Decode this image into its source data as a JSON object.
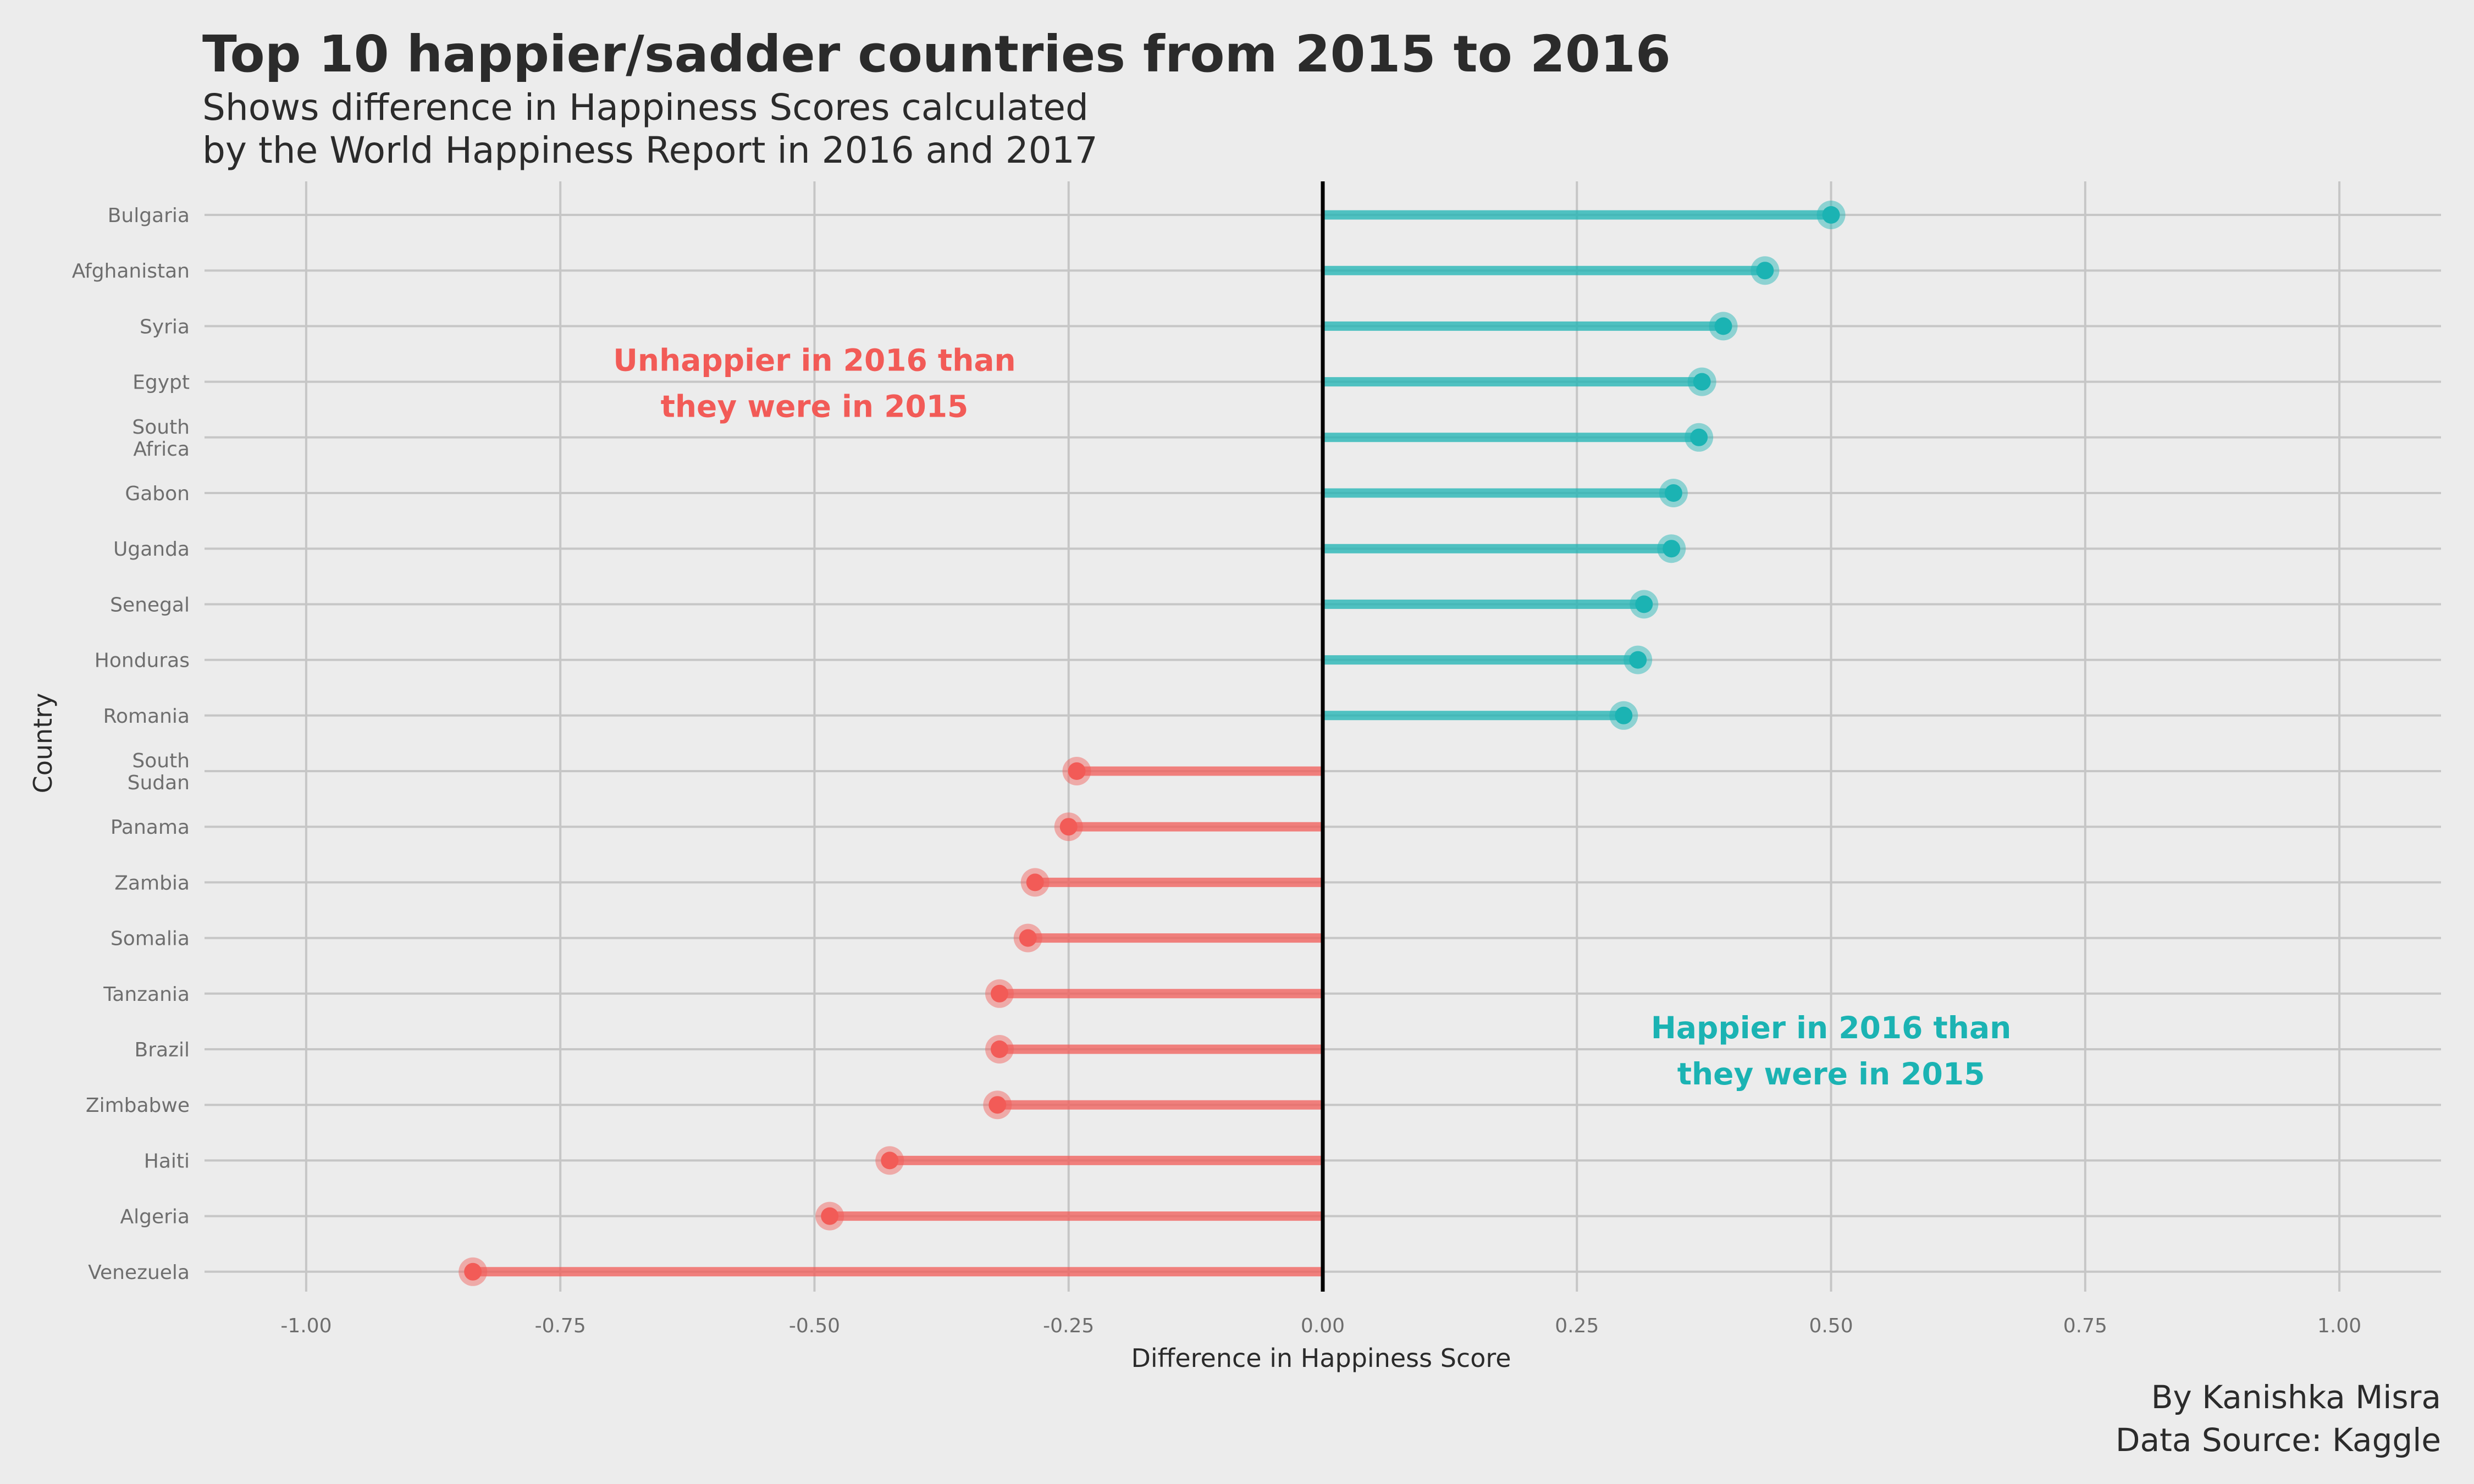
{
  "chart_data": {
    "type": "lollipop",
    "title": "Top 10 happier/sadder countries from 2015 to 2016",
    "subtitle": [
      "Shows difference in Happiness Scores calculated",
      "by the World Happiness Report in 2016 and 2017"
    ],
    "xlabel": "Difference in Happiness Score",
    "ylabel": "Country",
    "xlim": [
      -1.1,
      1.1
    ],
    "xticks": [
      -1.0,
      -0.75,
      -0.5,
      -0.25,
      0.0,
      0.25,
      0.5,
      0.75,
      1.0
    ],
    "xtick_labels": [
      "-1.00",
      "-0.75",
      "-0.50",
      "-0.25",
      "0.00",
      "0.25",
      "0.50",
      "0.75",
      "1.00"
    ],
    "grid": true,
    "colors": {
      "positive": "#1bb3b3",
      "negative": "#f25b57",
      "zero_line": "#000000"
    },
    "categories": [
      [
        "Bulgaria"
      ],
      [
        "Afghanistan"
      ],
      [
        "Syria"
      ],
      [
        "Egypt"
      ],
      [
        "South",
        "Africa"
      ],
      [
        "Gabon"
      ],
      [
        "Uganda"
      ],
      [
        "Senegal"
      ],
      [
        "Honduras"
      ],
      [
        "Romania"
      ],
      [
        "South",
        "Sudan"
      ],
      [
        "Panama"
      ],
      [
        "Zambia"
      ],
      [
        "Somalia"
      ],
      [
        "Tanzania"
      ],
      [
        "Brazil"
      ],
      [
        "Zimbabwe"
      ],
      [
        "Haiti"
      ],
      [
        "Algeria"
      ],
      [
        "Venezuela"
      ]
    ],
    "values": [
      0.5,
      0.435,
      0.394,
      0.373,
      0.37,
      0.345,
      0.343,
      0.316,
      0.31,
      0.296,
      -0.242,
      -0.25,
      -0.283,
      -0.29,
      -0.318,
      -0.318,
      -0.32,
      -0.426,
      -0.485,
      -0.836
    ],
    "annotations": [
      {
        "lines": [
          "Unhappier in 2016 than",
          "they were in 2015"
        ],
        "x": -0.5,
        "row": 2.8,
        "color": "negative"
      },
      {
        "lines": [
          "Happier in 2016 than",
          "they were in 2015"
        ],
        "x": 0.5,
        "row": 14.8,
        "color": "positive"
      }
    ],
    "caption": [
      "By Kanishka Misra",
      "Data Source: Kaggle"
    ]
  }
}
